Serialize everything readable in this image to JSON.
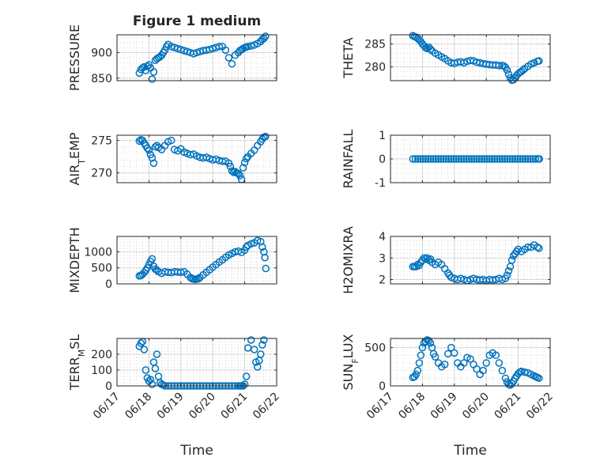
{
  "figure": {
    "title": "Figure 1 medium",
    "marker_color": "#0072bd",
    "axis_color": "#262626",
    "grid": true,
    "minor_grid": true
  },
  "chart_data": [
    {
      "type": "scatter",
      "id": "pressure",
      "ylabel": "PRESSURE",
      "ylim": [
        845,
        935
      ],
      "yticks": [
        850,
        900
      ],
      "xlim": [
        1,
        6
      ],
      "xticks": [
        1,
        2,
        3,
        4,
        5,
        6
      ],
      "xticklabels": [
        "06/17",
        "06/18",
        "06/19",
        "06/20",
        "06/21",
        "06/22"
      ],
      "show_xticklabels": false,
      "title": "Figure 1 medium",
      "x": [
        1.7,
        1.75,
        1.8,
        1.85,
        1.9,
        1.95,
        2.0,
        2.05,
        2.1,
        2.15,
        2.2,
        2.25,
        2.3,
        2.35,
        2.4,
        2.45,
        2.5,
        2.55,
        2.6,
        2.7,
        2.8,
        2.9,
        3.0,
        3.1,
        3.2,
        3.3,
        3.4,
        3.5,
        3.6,
        3.7,
        3.8,
        3.9,
        4.0,
        4.1,
        4.2,
        4.3,
        4.4,
        4.5,
        4.6,
        4.7,
        4.8,
        4.85,
        4.9,
        4.95,
        5.0,
        5.05,
        5.1,
        5.2,
        5.3,
        5.4,
        5.5,
        5.55,
        5.6,
        5.65
      ],
      "y": [
        860,
        867,
        870,
        872,
        865,
        873,
        876,
        870,
        848,
        862,
        885,
        888,
        890,
        892,
        895,
        900,
        905,
        912,
        916,
        912,
        910,
        908,
        906,
        904,
        902,
        900,
        898,
        900,
        902,
        904,
        905,
        906,
        908,
        910,
        912,
        912,
        905,
        890,
        878,
        895,
        900,
        904,
        906,
        908,
        910,
        911,
        912,
        913,
        915,
        918,
        922,
        926,
        928,
        932
      ]
    },
    {
      "type": "scatter",
      "id": "theta",
      "ylabel": "THETA",
      "ylim": [
        277,
        287
      ],
      "yticks": [
        280,
        285
      ],
      "xlim": [
        1,
        6
      ],
      "xticks": [
        1,
        2,
        3,
        4,
        5,
        6
      ],
      "xticklabels": [
        "06/17",
        "06/18",
        "06/19",
        "06/20",
        "06/21",
        "06/22"
      ],
      "show_xticklabels": false,
      "x": [
        1.7,
        1.75,
        1.8,
        1.85,
        1.9,
        1.95,
        2.0,
        2.05,
        2.1,
        2.15,
        2.2,
        2.25,
        2.3,
        2.4,
        2.5,
        2.6,
        2.7,
        2.8,
        2.9,
        3.0,
        3.1,
        3.2,
        3.3,
        3.4,
        3.5,
        3.6,
        3.7,
        3.8,
        3.9,
        4.0,
        4.1,
        4.2,
        4.3,
        4.4,
        4.5,
        4.55,
        4.6,
        4.65,
        4.7,
        4.75,
        4.8,
        4.85,
        4.9,
        4.95,
        5.0,
        5.05,
        5.1,
        5.15,
        5.2,
        5.3,
        5.4,
        5.5,
        5.6,
        5.65
      ],
      "y": [
        286.8,
        286.6,
        286.5,
        286.2,
        285.9,
        285.5,
        285.0,
        284.6,
        284.2,
        284.0,
        284.3,
        283.9,
        283.5,
        283.0,
        282.6,
        282.2,
        281.8,
        281.3,
        280.9,
        280.8,
        281.0,
        281.1,
        280.9,
        281.2,
        281.4,
        281.3,
        281.0,
        280.9,
        280.7,
        280.6,
        280.5,
        280.4,
        280.4,
        280.3,
        280.3,
        280.2,
        279.9,
        279.3,
        278.4,
        277.6,
        277.1,
        277.2,
        277.6,
        278.1,
        278.5,
        278.8,
        279.0,
        279.3,
        279.6,
        280.1,
        280.6,
        280.9,
        281.2,
        281.3
      ]
    },
    {
      "type": "scatter",
      "id": "air_temp",
      "ylabel": "AIR_TEMP",
      "ylim": [
        268.5,
        275.8
      ],
      "yticks": [
        270,
        275
      ],
      "xlim": [
        1,
        6
      ],
      "xticks": [
        1,
        2,
        3,
        4,
        5,
        6
      ],
      "xticklabels": [
        "06/17",
        "06/18",
        "06/19",
        "06/20",
        "06/21",
        "06/22"
      ],
      "show_xticklabels": false,
      "x": [
        1.7,
        1.75,
        1.8,
        1.85,
        1.9,
        1.95,
        2.0,
        2.05,
        2.1,
        2.15,
        2.2,
        2.25,
        2.3,
        2.4,
        2.5,
        2.6,
        2.7,
        2.8,
        2.9,
        3.0,
        3.1,
        3.2,
        3.3,
        3.4,
        3.5,
        3.6,
        3.7,
        3.8,
        3.9,
        4.0,
        4.1,
        4.2,
        4.3,
        4.4,
        4.5,
        4.55,
        4.6,
        4.65,
        4.7,
        4.75,
        4.8,
        4.85,
        4.9,
        4.95,
        5.0,
        5.05,
        5.1,
        5.2,
        5.3,
        5.4,
        5.5,
        5.55,
        5.6,
        5.65
      ],
      "y": [
        274.9,
        275.1,
        275.0,
        274.6,
        274.2,
        273.8,
        273.5,
        272.8,
        272.3,
        271.5,
        274.0,
        274.2,
        273.9,
        273.6,
        274.2,
        274.8,
        275.0,
        273.6,
        273.4,
        273.7,
        273.2,
        273.0,
        272.8,
        272.9,
        272.6,
        272.4,
        272.3,
        272.4,
        272.2,
        272.0,
        272.1,
        271.9,
        271.8,
        271.8,
        271.5,
        271.0,
        270.3,
        270.1,
        270.2,
        270.0,
        269.9,
        269.6,
        269.0,
        270.8,
        271.6,
        272.2,
        272.5,
        273.0,
        273.5,
        274.2,
        274.8,
        275.2,
        275.5,
        275.6
      ]
    },
    {
      "type": "scatter",
      "id": "rainfall",
      "ylabel": "RAINFALL",
      "ylim": [
        -1,
        1
      ],
      "yticks": [
        -1,
        0,
        1
      ],
      "xlim": [
        1,
        6
      ],
      "xticks": [
        1,
        2,
        3,
        4,
        5,
        6
      ],
      "xticklabels": [
        "06/17",
        "06/18",
        "06/19",
        "06/20",
        "06/21",
        "06/22"
      ],
      "show_xticklabels": false,
      "x": [
        1.7,
        1.78,
        1.86,
        1.94,
        2.02,
        2.1,
        2.18,
        2.26,
        2.34,
        2.42,
        2.5,
        2.58,
        2.66,
        2.74,
        2.82,
        2.9,
        2.98,
        3.06,
        3.14,
        3.22,
        3.3,
        3.38,
        3.46,
        3.54,
        3.62,
        3.7,
        3.78,
        3.86,
        3.94,
        4.02,
        4.1,
        4.18,
        4.26,
        4.34,
        4.42,
        4.5,
        4.58,
        4.66,
        4.74,
        4.82,
        4.9,
        4.98,
        5.06,
        5.14,
        5.22,
        5.3,
        5.38,
        5.46,
        5.54,
        5.62,
        5.66
      ],
      "y": [
        0,
        0,
        0,
        0,
        0,
        0,
        0,
        0,
        0,
        0,
        0,
        0,
        0,
        0,
        0,
        0,
        0,
        0,
        0,
        0,
        0,
        0,
        0,
        0,
        0,
        0,
        0,
        0,
        0,
        0,
        0,
        0,
        0,
        0,
        0,
        0,
        0,
        0,
        0,
        0,
        0,
        0,
        0,
        0,
        0,
        0,
        0,
        0,
        0,
        0,
        0
      ]
    },
    {
      "type": "scatter",
      "id": "mixdepth",
      "ylabel": "MIXDEPTH",
      "ylim": [
        0,
        1480
      ],
      "yticks": [
        0,
        500,
        1000
      ],
      "xlim": [
        1,
        6
      ],
      "xticks": [
        1,
        2,
        3,
        4,
        5,
        6
      ],
      "xticklabels": [
        "06/17",
        "06/18",
        "06/19",
        "06/20",
        "06/21",
        "06/22"
      ],
      "show_xticklabels": false,
      "x": [
        1.7,
        1.75,
        1.8,
        1.85,
        1.9,
        1.95,
        2.0,
        2.05,
        2.1,
        2.15,
        2.2,
        2.25,
        2.3,
        2.4,
        2.5,
        2.6,
        2.7,
        2.8,
        2.9,
        3.0,
        3.1,
        3.2,
        3.3,
        3.35,
        3.4,
        3.45,
        3.5,
        3.55,
        3.6,
        3.7,
        3.8,
        3.9,
        4.0,
        4.1,
        4.2,
        4.3,
        4.4,
        4.5,
        4.6,
        4.7,
        4.8,
        4.9,
        5.0,
        5.05,
        5.1,
        5.2,
        5.3,
        5.4,
        5.5,
        5.55,
        5.6,
        5.63,
        5.66
      ],
      "y": [
        250,
        260,
        300,
        350,
        420,
        500,
        600,
        700,
        780,
        550,
        460,
        430,
        380,
        330,
        380,
        360,
        350,
        380,
        370,
        360,
        380,
        300,
        200,
        160,
        150,
        140,
        150,
        160,
        200,
        280,
        360,
        440,
        520,
        600,
        680,
        750,
        830,
        900,
        950,
        1000,
        1020,
        980,
        1050,
        1150,
        1200,
        1250,
        1280,
        1350,
        1320,
        1150,
        1000,
        820,
        480
      ]
    },
    {
      "type": "scatter",
      "id": "h2omixra",
      "ylabel": "H2OMIXRA",
      "ylim": [
        1.8,
        4
      ],
      "yticks": [
        2,
        3,
        4
      ],
      "xlim": [
        1,
        6
      ],
      "xticks": [
        1,
        2,
        3,
        4,
        5,
        6
      ],
      "xticklabels": [
        "06/17",
        "06/18",
        "06/19",
        "06/20",
        "06/21",
        "06/22"
      ],
      "show_xticklabels": false,
      "x": [
        1.7,
        1.75,
        1.8,
        1.85,
        1.9,
        1.95,
        2.0,
        2.05,
        2.1,
        2.15,
        2.2,
        2.25,
        2.3,
        2.4,
        2.5,
        2.6,
        2.7,
        2.8,
        2.85,
        2.9,
        3.0,
        3.1,
        3.2,
        3.3,
        3.4,
        3.5,
        3.6,
        3.7,
        3.8,
        3.9,
        4.0,
        4.1,
        4.2,
        4.3,
        4.4,
        4.5,
        4.6,
        4.65,
        4.7,
        4.75,
        4.8,
        4.85,
        4.9,
        4.95,
        5.0,
        5.1,
        5.2,
        5.3,
        5.4,
        5.5,
        5.6,
        5.65
      ],
      "y": [
        2.6,
        2.6,
        2.6,
        2.7,
        2.65,
        2.8,
        2.9,
        3.0,
        2.95,
        3.0,
        2.9,
        2.95,
        2.8,
        2.7,
        2.8,
        2.7,
        2.5,
        2.3,
        2.2,
        2.1,
        2.05,
        2.0,
        2.05,
        2.0,
        1.95,
        2.0,
        2.05,
        2.0,
        1.98,
        2.0,
        1.95,
        2.0,
        1.98,
        2.0,
        2.05,
        2.0,
        2.05,
        2.2,
        2.4,
        2.6,
        2.9,
        3.1,
        3.2,
        3.3,
        3.4,
        3.3,
        3.4,
        3.5,
        3.5,
        3.6,
        3.5,
        3.45
      ]
    },
    {
      "type": "scatter",
      "id": "terr_msl",
      "ylabel": "TERR_MSL",
      "ylim": [
        0,
        300
      ],
      "yticks": [
        0,
        100,
        200
      ],
      "xlim": [
        1,
        6
      ],
      "xticks": [
        1,
        2,
        3,
        4,
        5,
        6
      ],
      "xticklabels": [
        "06/17",
        "06/18",
        "06/19",
        "06/20",
        "06/21",
        "06/22"
      ],
      "show_xticklabels": true,
      "xlabel": "Time",
      "x": [
        1.7,
        1.75,
        1.8,
        1.85,
        1.9,
        1.95,
        2.0,
        2.05,
        2.1,
        2.15,
        2.2,
        2.25,
        2.3,
        2.35,
        2.4,
        2.45,
        2.5,
        2.6,
        2.7,
        2.8,
        2.9,
        3.0,
        3.1,
        3.2,
        3.3,
        3.4,
        3.5,
        3.6,
        3.7,
        3.8,
        3.9,
        4.0,
        4.1,
        4.2,
        4.3,
        4.4,
        4.5,
        4.6,
        4.7,
        4.8,
        4.85,
        4.9,
        4.95,
        5.0,
        5.05,
        5.1,
        5.2,
        5.3,
        5.35,
        5.4,
        5.45,
        5.5,
        5.55,
        5.6
      ],
      "y": [
        250,
        270,
        280,
        230,
        100,
        50,
        30,
        40,
        10,
        150,
        110,
        200,
        60,
        20,
        10,
        5,
        0,
        0,
        0,
        0,
        0,
        0,
        0,
        0,
        0,
        0,
        0,
        0,
        0,
        0,
        0,
        0,
        0,
        0,
        0,
        0,
        0,
        0,
        0,
        0,
        0,
        0,
        0,
        10,
        60,
        240,
        290,
        230,
        150,
        120,
        160,
        200,
        260,
        290
      ]
    },
    {
      "type": "scatter",
      "id": "sun_flux",
      "ylabel": "SUN_FLUX",
      "ylim": [
        0,
        620
      ],
      "yticks": [
        0,
        500
      ],
      "xlim": [
        1,
        6
      ],
      "xticks": [
        1,
        2,
        3,
        4,
        5,
        6
      ],
      "xticklabels": [
        "06/17",
        "06/18",
        "06/19",
        "06/20",
        "06/21",
        "06/22"
      ],
      "show_xticklabels": true,
      "xlabel": "Time",
      "x": [
        1.7,
        1.75,
        1.8,
        1.85,
        1.9,
        1.95,
        2.0,
        2.05,
        2.1,
        2.15,
        2.2,
        2.25,
        2.3,
        2.35,
        2.4,
        2.5,
        2.6,
        2.7,
        2.8,
        2.9,
        3.0,
        3.1,
        3.2,
        3.3,
        3.4,
        3.5,
        3.6,
        3.7,
        3.8,
        3.9,
        4.0,
        4.1,
        4.2,
        4.3,
        4.4,
        4.5,
        4.6,
        4.65,
        4.7,
        4.75,
        4.8,
        4.85,
        4.9,
        4.95,
        5.0,
        5.05,
        5.1,
        5.2,
        5.3,
        5.4,
        5.5,
        5.55,
        5.6,
        5.65
      ],
      "y": [
        110,
        120,
        150,
        200,
        300,
        400,
        500,
        560,
        580,
        600,
        590,
        560,
        500,
        420,
        380,
        300,
        250,
        280,
        420,
        500,
        430,
        300,
        250,
        300,
        370,
        350,
        280,
        220,
        150,
        200,
        300,
        400,
        430,
        400,
        300,
        200,
        100,
        50,
        20,
        10,
        30,
        60,
        100,
        130,
        160,
        180,
        190,
        180,
        170,
        150,
        130,
        120,
        110,
        100
      ]
    }
  ]
}
